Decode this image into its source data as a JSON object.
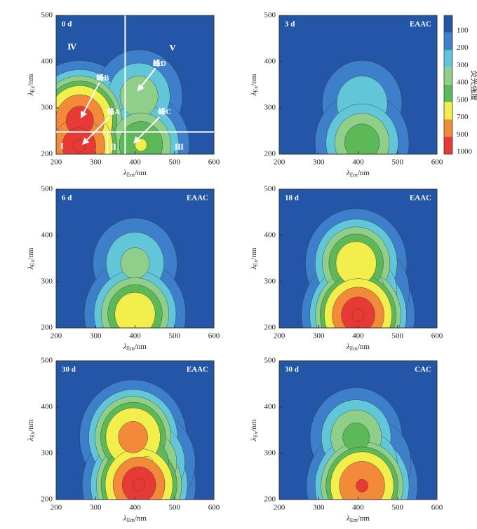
{
  "colorbar": {
    "title": "荧光强度",
    "levels": [
      100,
      200,
      300,
      400,
      500,
      700,
      900,
      1000
    ],
    "colors": [
      "#2356a6",
      "#3d7fcb",
      "#62c6d9",
      "#8fcf8a",
      "#5db957",
      "#f2ee4c",
      "#f28a3a",
      "#e83a34"
    ]
  },
  "chart_data": [
    {
      "type": "contour",
      "label": "0 d",
      "xlim": [
        200,
        600
      ],
      "ylim": [
        200,
        500
      ],
      "xticks": [
        200,
        300,
        400,
        500,
        600
      ],
      "yticks": [
        200,
        300,
        400,
        500
      ],
      "xlabel": {
        "symbol": "λ",
        "sub": "Em",
        "unit": "/nm"
      },
      "ylabel": {
        "symbol": "λ",
        "sub": "Ex",
        "unit": "/nm"
      },
      "peaks": [
        {
          "em": 260,
          "ex": 272,
          "value": 950
        },
        {
          "em": 258,
          "ex": 218,
          "value": 1000
        },
        {
          "em": 410,
          "ex": 325,
          "value": 350
        },
        {
          "em": 415,
          "ex": 220,
          "value": 500
        }
      ],
      "annotations": [
        "Ⅰ",
        "Ⅱ",
        "Ⅲ",
        "Ⅳ",
        "Ⅴ",
        "峰A",
        "峰B",
        "峰C",
        "峰D"
      ]
    },
    {
      "type": "contour",
      "label": "3 d",
      "tag": "EAAC",
      "xlim": [
        200,
        600
      ],
      "ylim": [
        200,
        500
      ],
      "xticks": [
        200,
        300,
        400,
        500,
        600
      ],
      "yticks": [
        200,
        300,
        400,
        500
      ],
      "xlabel": {
        "symbol": "λ",
        "sub": "Em",
        "unit": "/nm"
      },
      "ylabel": {
        "symbol": "λ",
        "sub": "Ex",
        "unit": "/nm"
      },
      "peaks": [
        {
          "em": 410,
          "ex": 310,
          "value": 280
        },
        {
          "em": 410,
          "ex": 225,
          "value": 450
        }
      ]
    },
    {
      "type": "contour",
      "label": "6 d",
      "tag": "EAAC",
      "xlim": [
        200,
        600
      ],
      "ylim": [
        200,
        500
      ],
      "xticks": [
        200,
        300,
        400,
        500,
        600
      ],
      "yticks": [
        200,
        300,
        400,
        500
      ],
      "xlabel": {
        "symbol": "λ",
        "sub": "Em",
        "unit": "/nm"
      },
      "ylabel": {
        "symbol": "λ",
        "sub": "Ex",
        "unit": "/nm"
      },
      "peaks": [
        {
          "em": 400,
          "ex": 340,
          "value": 320
        },
        {
          "em": 400,
          "ex": 230,
          "value": 600
        }
      ]
    },
    {
      "type": "contour",
      "label": "18 d",
      "tag": "EAAC",
      "xlim": [
        200,
        600
      ],
      "ylim": [
        200,
        500
      ],
      "xticks": [
        200,
        300,
        400,
        500,
        600
      ],
      "yticks": [
        200,
        300,
        400,
        500
      ],
      "xlabel": {
        "symbol": "λ",
        "sub": "Em",
        "unit": "/nm"
      },
      "ylabel": {
        "symbol": "λ",
        "sub": "Ex",
        "unit": "/nm"
      },
      "peaks": [
        {
          "em": 395,
          "ex": 340,
          "value": 600
        },
        {
          "em": 400,
          "ex": 228,
          "value": 1000
        },
        {
          "em": 420,
          "ex": 280,
          "value": 350
        }
      ]
    },
    {
      "type": "contour",
      "label": "30 d",
      "tag": "EAAC",
      "xlim": [
        200,
        600
      ],
      "ylim": [
        200,
        500
      ],
      "xticks": [
        200,
        300,
        400,
        500,
        600
      ],
      "yticks": [
        200,
        300,
        400,
        500
      ],
      "xlabel": {
        "symbol": "λ",
        "sub": "Em",
        "unit": "/nm"
      },
      "ylabel": {
        "symbol": "λ",
        "sub": "Ex",
        "unit": "/nm"
      },
      "peaks": [
        {
          "em": 395,
          "ex": 335,
          "value": 750
        },
        {
          "em": 410,
          "ex": 232,
          "value": 1000
        },
        {
          "em": 430,
          "ex": 280,
          "value": 500
        }
      ]
    },
    {
      "type": "contour",
      "label": "30 d",
      "tag": "CAC",
      "xlim": [
        200,
        600
      ],
      "ylim": [
        200,
        500
      ],
      "xticks": [
        200,
        300,
        400,
        500,
        600
      ],
      "yticks": [
        200,
        300,
        400,
        500
      ],
      "xlabel": {
        "symbol": "λ",
        "sub": "Em",
        "unit": "/nm"
      },
      "ylabel": {
        "symbol": "λ",
        "sub": "Ex",
        "unit": "/nm"
      },
      "peaks": [
        {
          "em": 395,
          "ex": 335,
          "value": 420
        },
        {
          "em": 410,
          "ex": 230,
          "value": 900
        },
        {
          "em": 430,
          "ex": 280,
          "value": 300
        }
      ]
    }
  ]
}
